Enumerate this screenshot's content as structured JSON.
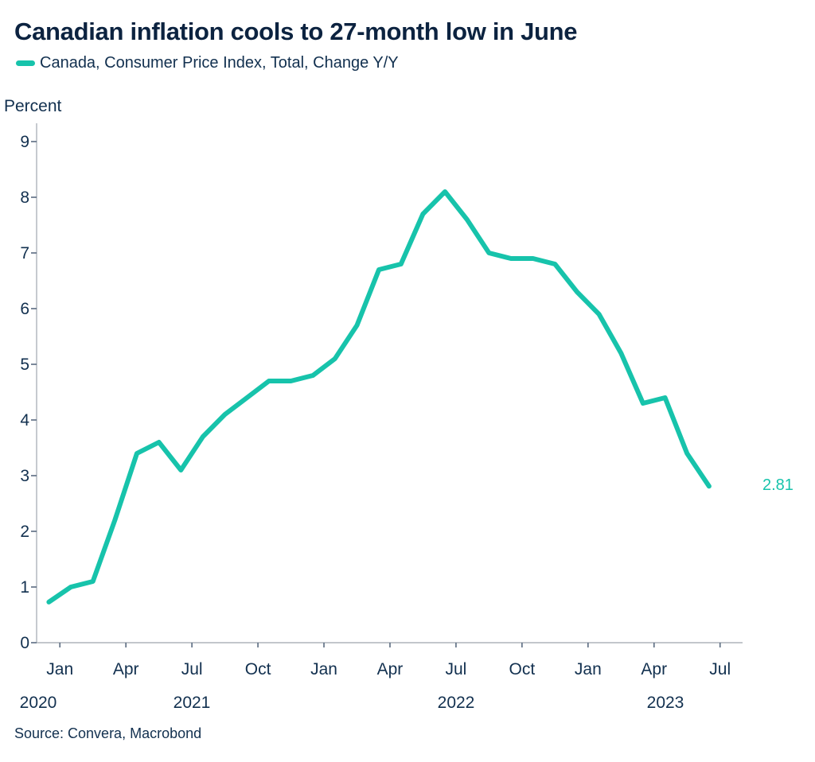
{
  "header": {
    "title": "Canadian inflation cools to 27-month low in June",
    "legend_label": "Canada, Consumer Price Index, Total, Change Y/Y",
    "axis_unit_label": "Percent"
  },
  "footer": {
    "source": "Source: Convera, Macrobond"
  },
  "last_value_label": "2.81",
  "colors": {
    "line": "#17C3AB",
    "text": "#12304F",
    "title_text": "#0C2340",
    "axis_line": "#AEB4BB",
    "tick": "#5A6B80"
  },
  "chart_data": {
    "type": "line",
    "title": "Canadian inflation cools to 27-month low in June",
    "xlabel": "",
    "ylabel": "Percent",
    "ylim": [
      0,
      9
    ],
    "y_ticks": [
      0,
      1,
      2,
      3,
      4,
      5,
      6,
      7,
      8,
      9
    ],
    "grid": false,
    "legend_position": "top-left",
    "x_tick_labels": [
      "Jan",
      "Apr",
      "Jul",
      "Oct",
      "Jan",
      "Apr",
      "Jul",
      "Oct",
      "Jan",
      "Apr",
      "Jul"
    ],
    "year_labels": [
      "2020",
      "2021",
      "2022",
      "2023"
    ],
    "end_label": "2.81",
    "series": [
      {
        "name": "Canada, Consumer Price Index, Total, Change Y/Y",
        "color": "#17C3AB",
        "x": [
          "Dec 2020",
          "Jan 2021",
          "Feb 2021",
          "Mar 2021",
          "Apr 2021",
          "May 2021",
          "Jun 2021",
          "Jul 2021",
          "Aug 2021",
          "Sep 2021",
          "Oct 2021",
          "Nov 2021",
          "Dec 2021",
          "Jan 2022",
          "Feb 2022",
          "Mar 2022",
          "Apr 2022",
          "May 2022",
          "Jun 2022",
          "Jul 2022",
          "Aug 2022",
          "Sep 2022",
          "Oct 2022",
          "Nov 2022",
          "Dec 2022",
          "Jan 2023",
          "Feb 2023",
          "Mar 2023",
          "Apr 2023",
          "May 2023",
          "Jun 2023"
        ],
        "values": [
          0.73,
          1.0,
          1.1,
          2.2,
          3.4,
          3.6,
          3.1,
          3.7,
          4.1,
          4.4,
          4.7,
          4.7,
          4.8,
          5.1,
          5.7,
          6.7,
          6.8,
          7.7,
          8.1,
          7.6,
          7.0,
          6.9,
          6.9,
          6.8,
          6.3,
          5.9,
          5.2,
          4.3,
          4.4,
          3.4,
          2.81
        ]
      }
    ]
  }
}
